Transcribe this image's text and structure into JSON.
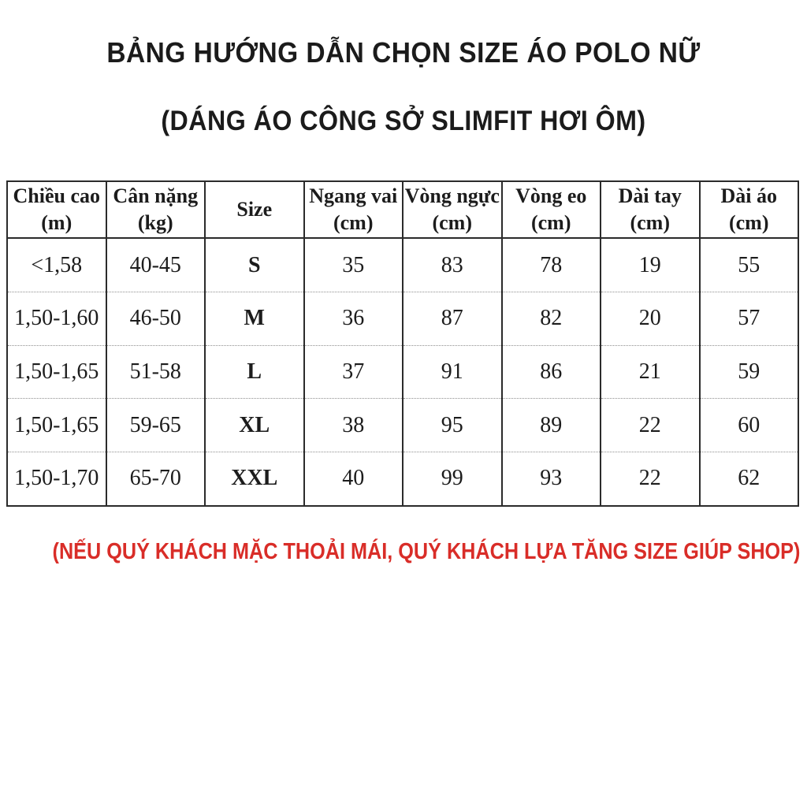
{
  "header": {
    "title": "BẢNG HƯỚNG DẪN CHỌN SIZE ÁO POLO NỮ",
    "subtitle": "(DÁNG ÁO CÔNG SỞ SLIMFIT HƠI ÔM)"
  },
  "footer": {
    "note": "(NẾU QUÝ KHÁCH MẶC THOẢI MÁI, QUÝ KHÁCH LỰA TĂNG SIZE GIÚP SHOP)"
  },
  "colors": {
    "text": "#1c1c1c",
    "border": "#2b2b2b",
    "row_divider": "#8f8f8f",
    "note_red": "#d92d28",
    "background": "#ffffff"
  },
  "chart_data": {
    "type": "table",
    "title": "BẢNG HƯỚNG DẪN CHỌN SIZE ÁO POLO NỮ",
    "subtitle": "(DÁNG ÁO CÔNG SỞ SLIMFIT HƠI ÔM)",
    "columns": [
      {
        "label": "Chiều cao",
        "unit": "(m)"
      },
      {
        "label": "Cân nặng",
        "unit": "(kg)"
      },
      {
        "label": "Size",
        "unit": ""
      },
      {
        "label": "Ngang vai",
        "unit": "(cm)"
      },
      {
        "label": "Vòng ngực",
        "unit": "(cm)"
      },
      {
        "label": "Vòng eo",
        "unit": "(cm)"
      },
      {
        "label": "Dài tay",
        "unit": "(cm)"
      },
      {
        "label": "Dài áo",
        "unit": "(cm)"
      }
    ],
    "rows": [
      [
        "<1,58",
        "40-45",
        "S",
        "35",
        "83",
        "78",
        "19",
        "55"
      ],
      [
        "1,50-1,60",
        "46-50",
        "M",
        "36",
        "87",
        "82",
        "20",
        "57"
      ],
      [
        "1,50-1,65",
        "51-58",
        "L",
        "37",
        "91",
        "86",
        "21",
        "59"
      ],
      [
        "1,50-1,65",
        "59-65",
        "XL",
        "38",
        "95",
        "89",
        "22",
        "60"
      ],
      [
        "1,50-1,70",
        "65-70",
        "XXL",
        "40",
        "99",
        "93",
        "22",
        "62"
      ]
    ]
  }
}
